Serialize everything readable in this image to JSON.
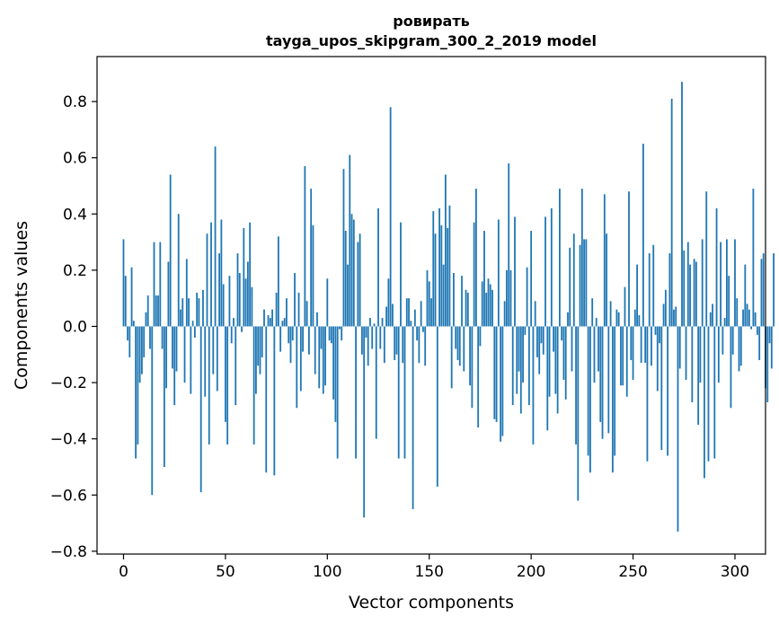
{
  "chart_data": {
    "type": "bar",
    "title_line1": "ровирать",
    "title_line2": "tayga_upos_skipgram_300_2_2019 model",
    "xlabel": "Vector components",
    "ylabel": "Components values",
    "xlim": [
      -13,
      315
    ],
    "ylim": [
      -0.81,
      0.96
    ],
    "xticks": [
      0,
      50,
      100,
      150,
      200,
      250,
      300
    ],
    "xtick_labels": [
      "0",
      "50",
      "100",
      "150",
      "200",
      "250",
      "300"
    ],
    "yticks": [
      0.8,
      0.6,
      0.4,
      0.2,
      0.0,
      -0.2,
      -0.4,
      -0.6,
      -0.8
    ],
    "ytick_labels": [
      "0.8",
      "0.6",
      "0.4",
      "0.2",
      "0.0",
      "−0.2",
      "−0.4",
      "−0.6",
      "−0.8"
    ],
    "bar_color": "#1f77b4",
    "grid": false,
    "values": [
      0.31,
      0.18,
      -0.05,
      -0.11,
      0.21,
      0.02,
      -0.47,
      -0.42,
      -0.2,
      -0.17,
      -0.11,
      0.05,
      0.11,
      -0.08,
      -0.6,
      0.3,
      0.11,
      0.11,
      0.3,
      -0.08,
      -0.5,
      -0.22,
      0.23,
      0.54,
      -0.15,
      -0.28,
      -0.16,
      0.4,
      0.06,
      0.1,
      -0.2,
      0.24,
      0.1,
      -0.24,
      0.02,
      -0.04,
      0.12,
      0.1,
      -0.59,
      0.13,
      -0.25,
      0.33,
      -0.42,
      0.37,
      -0.17,
      0.64,
      -0.23,
      0.26,
      0.38,
      0.15,
      -0.34,
      -0.42,
      0.18,
      -0.06,
      0.03,
      -0.28,
      0.26,
      0.19,
      -0.02,
      0.35,
      0.17,
      0.23,
      0.37,
      0.14,
      -0.42,
      -0.24,
      -0.14,
      -0.17,
      -0.11,
      0.06,
      -0.52,
      0.04,
      0.03,
      0.06,
      -0.53,
      0.12,
      0.32,
      -0.09,
      0.02,
      0.03,
      0.1,
      -0.06,
      -0.13,
      -0.05,
      0.19,
      -0.29,
      0.12,
      -0.23,
      -0.09,
      0.57,
      0.09,
      -0.1,
      0.49,
      0.36,
      -0.17,
      0.05,
      -0.22,
      -0.08,
      -0.24,
      -0.21,
      0.17,
      -0.05,
      -0.06,
      -0.26,
      -0.34,
      -0.47,
      -0.01,
      -0.05,
      0.56,
      0.34,
      0.22,
      0.61,
      0.4,
      0.38,
      -0.47,
      0.3,
      0.33,
      -0.1,
      -0.68,
      -0.04,
      -0.14,
      0.03,
      -0.08,
      0.01,
      -0.4,
      0.42,
      -0.08,
      0.03,
      -0.13,
      0.07,
      0.17,
      0.78,
      0.08,
      -0.12,
      -0.1,
      -0.47,
      0.37,
      -0.13,
      -0.47,
      0.1,
      0.1,
      0.02,
      -0.65,
      0.06,
      -0.05,
      -0.13,
      0.09,
      -0.02,
      -0.14,
      0.2,
      0.16,
      0.1,
      0.41,
      0.33,
      -0.57,
      0.42,
      0.36,
      0.22,
      0.54,
      0.35,
      0.43,
      -0.22,
      0.19,
      -0.08,
      -0.12,
      -0.14,
      0.18,
      -0.16,
      0.13,
      0.12,
      -0.21,
      -0.29,
      0.37,
      0.49,
      -0.36,
      -0.07,
      0.16,
      0.34,
      0.12,
      0.17,
      0.15,
      0.13,
      -0.33,
      -0.34,
      0.38,
      -0.41,
      -0.39,
      0.09,
      0.2,
      0.58,
      0.2,
      -0.28,
      0.39,
      -0.24,
      -0.16,
      -0.31,
      -0.2,
      -0.03,
      0.21,
      -0.28,
      0.34,
      -0.42,
      0.09,
      -0.11,
      -0.17,
      -0.06,
      -0.1,
      0.39,
      -0.37,
      -0.25,
      0.42,
      -0.09,
      -0.24,
      -0.31,
      0.49,
      -0.05,
      -0.19,
      -0.26,
      0.05,
      0.28,
      -0.16,
      0.33,
      -0.42,
      -0.62,
      0.29,
      0.49,
      0.31,
      0.31,
      -0.46,
      -0.52,
      0.1,
      -0.2,
      0.03,
      -0.16,
      -0.34,
      -0.4,
      0.47,
      0.33,
      -0.38,
      0.09,
      -0.52,
      -0.46,
      0.06,
      0.05,
      -0.21,
      -0.21,
      0.14,
      -0.25,
      0.48,
      -0.12,
      -0.19,
      0.06,
      0.22,
      0.04,
      -0.13,
      0.65,
      -0.13,
      -0.48,
      0.26,
      -0.14,
      0.29,
      -0.03,
      -0.23,
      -0.06,
      -0.44,
      0.08,
      0.13,
      -0.46,
      0.26,
      0.81,
      0.06,
      0.07,
      -0.73,
      -0.15,
      0.87,
      0.27,
      -0.19,
      0.3,
      0.22,
      -0.27,
      0.24,
      0.23,
      -0.35,
      -0.2,
      0.31,
      -0.54,
      0.48,
      -0.48,
      0.05,
      0.08,
      -0.47,
      0.42,
      -0.2,
      0.3,
      -0.1,
      0.03,
      0.31,
      0.18,
      -0.29,
      -0.1,
      0.31,
      0.1,
      -0.16,
      -0.14,
      0.06,
      0.22,
      0.08,
      0.06,
      -0.01,
      0.49,
      0.05,
      -0.03,
      -0.12,
      0.24,
      0.26,
      -0.22,
      -0.27,
      -0.06,
      -0.15,
      0.26
    ]
  }
}
